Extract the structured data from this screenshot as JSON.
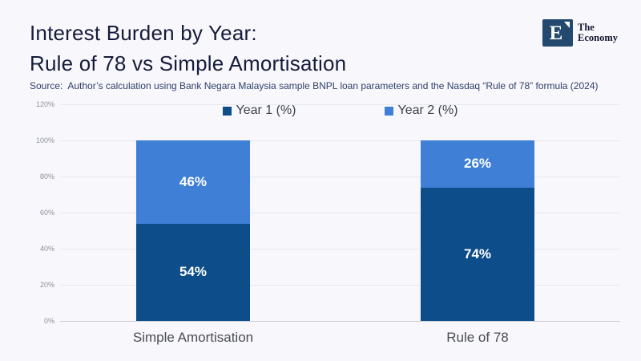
{
  "header": {
    "title_line1": "Interest Burden by Year:",
    "title_line2": "Rule of 78 vs Simple Amortisation"
  },
  "logo": {
    "letter": "E",
    "name_line1": "The",
    "name_line2": "Economy"
  },
  "source": {
    "text": "Source:  Author’s calculation using Bank Negara Malaysia sample BNPL loan parameters and the Nasdaq “Rule of 78” formula (2024)"
  },
  "chart_data": {
    "type": "bar",
    "stacked": true,
    "title": "Interest Burden by Year: Rule of 78 vs Simple Amortisation",
    "categories": [
      "Simple Amortisation",
      "Rule of 78"
    ],
    "series": [
      {
        "name": "Year 1 (%)",
        "color": "#0d4d89",
        "values": [
          54,
          74
        ]
      },
      {
        "name": "Year 2 (%)",
        "color": "#3f80d6",
        "values": [
          46,
          26
        ]
      }
    ],
    "xlabel": "",
    "ylabel": "",
    "ylim": [
      0,
      120
    ],
    "ytick_step": 20,
    "ytick_suffix": "%",
    "grid": true,
    "legend_position": "top",
    "data_label_suffix": "%",
    "data_label_color": "#ffffff"
  },
  "colors": {
    "background": "#f7f7fc",
    "title": "#151c3b",
    "source": "#31406b",
    "grid": "#e6e9ef",
    "axis_line": "#c7cbd2",
    "ytick": "#8e929b",
    "xtick": "#4a4d53",
    "legend_text": "#3d424b",
    "logo_navy": "#234a6e"
  }
}
